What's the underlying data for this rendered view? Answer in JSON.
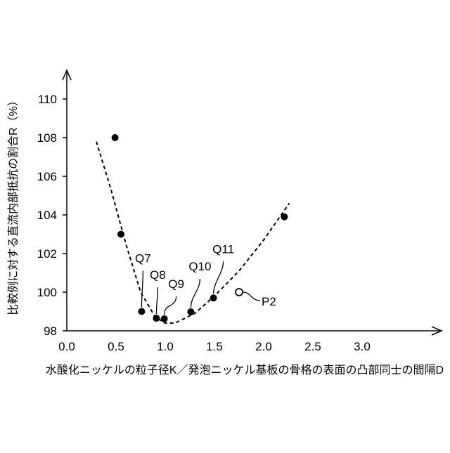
{
  "chart_data": {
    "type": "scatter",
    "xlabel": "水酸化ニッケルの粒子径K／発泡ニッケル基板の骨格の表面の凸部同士の間隔D",
    "ylabel": "比較例に対する直流内部抵抗の割合R（%）",
    "xlim": [
      0,
      3.81
    ],
    "ylim": [
      98,
      111.5
    ],
    "xticks": [
      {
        "value": 0,
        "label": "0.0"
      },
      0.5,
      {
        "value": 1,
        "label": "1.0"
      },
      1.5,
      {
        "value": 2,
        "label": "2.0"
      },
      2.5,
      {
        "value": 3,
        "label": "3.0"
      }
    ],
    "yticks": [
      98,
      100,
      102,
      104,
      106,
      108,
      110
    ],
    "grid": false,
    "color": "#000000",
    "points": {
      "x": [
        0.49,
        0.55,
        0.76,
        0.91,
        0.99,
        1.26,
        1.49,
        2.21
      ],
      "y": [
        108.0,
        103.0,
        99.0,
        98.65,
        98.62,
        98.98,
        99.7,
        103.9
      ],
      "labels": [
        null,
        null,
        "Q7",
        "Q8",
        "Q9",
        "Q10",
        "Q11",
        null
      ]
    },
    "reference": {
      "label": "P2",
      "x": 1.75,
      "y": 100.0
    },
    "curve": {
      "x": [
        0.3,
        0.45,
        0.6,
        0.75,
        0.9,
        1.0,
        1.1,
        1.3,
        1.5,
        1.75,
        2.0,
        2.26
      ],
      "y": [
        107.8,
        105.3,
        102.5,
        100.0,
        98.7,
        98.4,
        98.4,
        98.9,
        99.8,
        101.1,
        102.7,
        104.6
      ]
    }
  }
}
